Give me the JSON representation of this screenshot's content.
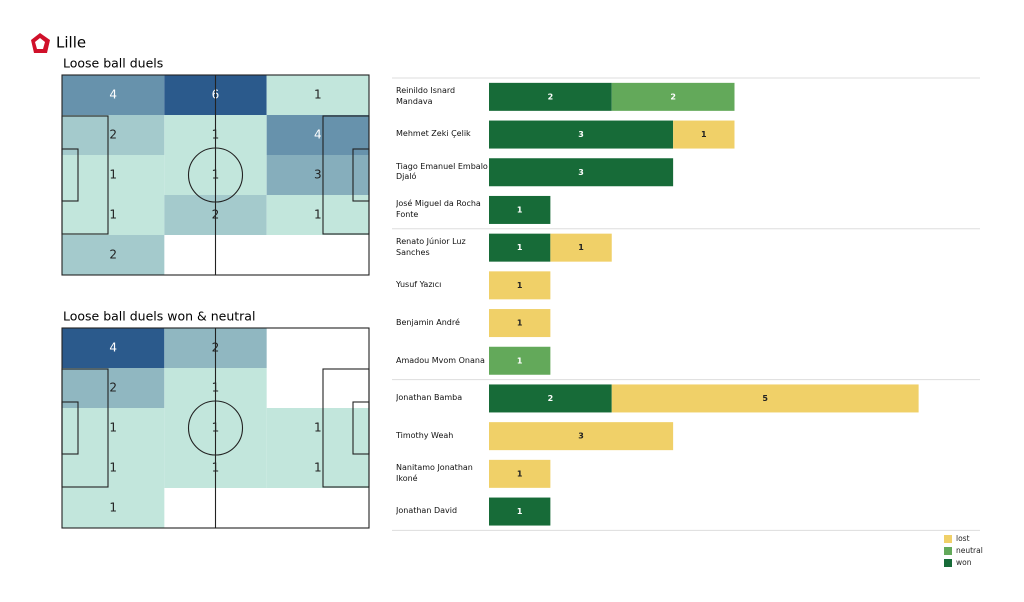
{
  "team": "Lille",
  "chart_data": [
    {
      "type": "heatmap",
      "title": "Loose ball duels",
      "cmap": [
        "#c2e6dc",
        "#2b5a8c"
      ],
      "grid": [
        [
          4,
          6,
          1
        ],
        [
          2,
          1,
          4
        ],
        [
          1,
          1,
          3
        ],
        [
          1,
          2,
          1
        ],
        [
          2,
          null,
          null
        ]
      ]
    },
    {
      "type": "heatmap",
      "title": "Loose ball duels won & neutral",
      "cmap": [
        "#c2e6dc",
        "#2b5a8c"
      ],
      "grid": [
        [
          4,
          2,
          null
        ],
        [
          2,
          1,
          null
        ],
        [
          1,
          1,
          1
        ],
        [
          1,
          1,
          1
        ],
        [
          1,
          null,
          null
        ]
      ]
    },
    {
      "type": "bar",
      "orientation": "horizontal",
      "stacked": true,
      "xlim": [
        0,
        8
      ],
      "legend": "lower right",
      "categories": [
        "Reinildo Isnard Mandava",
        "Mehmet Zeki Çelik",
        "Tiago Emanuel Embalo Djaló",
        "José Miguel da Rocha Fonte",
        "Renato Júnior Luz Sanches",
        "Yusuf Yazıcı",
        "Benjamin André",
        "Amadou Mvom Onana",
        "Jonathan Bamba",
        "Timothy Weah",
        "Nanitamo Jonathan Ikoné",
        "Jonathan David"
      ],
      "series": [
        {
          "name": "won",
          "color": "#176b38",
          "values": [
            2,
            3,
            3,
            1,
            1,
            null,
            null,
            null,
            2,
            null,
            null,
            1
          ]
        },
        {
          "name": "neutral",
          "color": "#63a95a",
          "values": [
            2,
            null,
            null,
            null,
            null,
            null,
            null,
            1,
            null,
            null,
            null,
            null
          ]
        },
        {
          "name": "lost",
          "color": "#f0d068",
          "values": [
            null,
            1,
            null,
            null,
            1,
            1,
            1,
            null,
            5,
            3,
            1,
            null
          ]
        }
      ]
    }
  ]
}
